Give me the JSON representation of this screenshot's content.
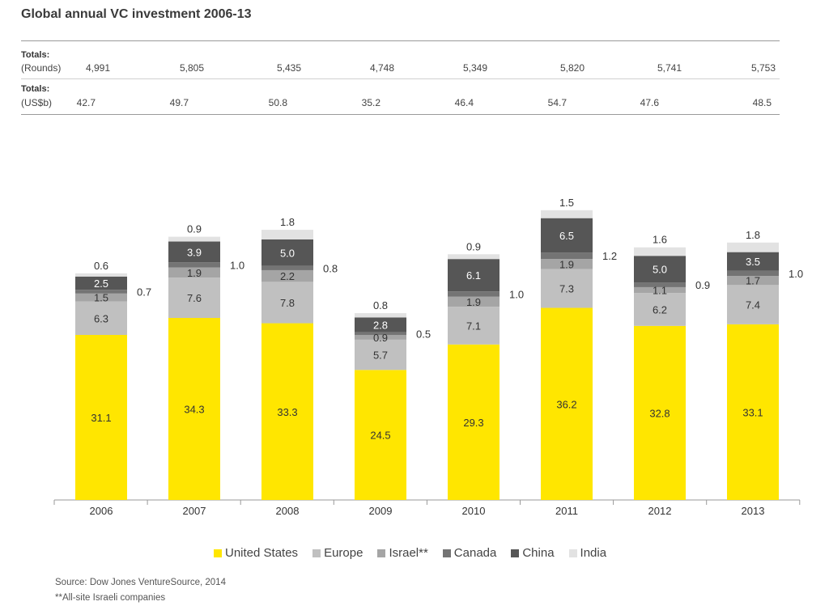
{
  "title": "Global annual VC investment 2006-13",
  "totals": {
    "rounds_label": "Totals:",
    "rounds_unit": "(Rounds)",
    "rounds": [
      "4,991",
      "5,805",
      "5,435",
      "4,748",
      "5,349",
      "5,820",
      "5,741",
      "5,753"
    ],
    "usd_label": "Totals:",
    "usd_unit": "(US$b)",
    "usd": [
      "42.7",
      "49.7",
      "50.8",
      "35.2",
      "46.4",
      "54.7",
      "47.6",
      "48.5"
    ]
  },
  "chart_data": {
    "type": "bar",
    "stacked": true,
    "categories": [
      "2006",
      "2007",
      "2008",
      "2009",
      "2010",
      "2011",
      "2012",
      "2013"
    ],
    "series": [
      {
        "name": "United States",
        "color": "#ffe600",
        "values": [
          31.1,
          34.3,
          33.3,
          24.5,
          29.3,
          36.2,
          32.8,
          33.1
        ]
      },
      {
        "name": "Europe",
        "color": "#c0c0c0",
        "values": [
          6.3,
          7.6,
          7.8,
          5.7,
          7.1,
          7.3,
          6.2,
          7.4
        ]
      },
      {
        "name": "Israel**",
        "color": "#a5a5a5",
        "values": [
          1.5,
          1.9,
          2.2,
          0.9,
          1.9,
          1.9,
          1.1,
          1.7
        ]
      },
      {
        "name": "Canada",
        "color": "#747474",
        "values": [
          0.7,
          1.0,
          0.8,
          0.5,
          1.0,
          1.2,
          0.9,
          1.0
        ]
      },
      {
        "name": "China",
        "color": "#565656",
        "values": [
          2.5,
          3.9,
          5.0,
          2.8,
          6.1,
          6.5,
          5.0,
          3.5
        ]
      },
      {
        "name": "India",
        "color": "#e2e2e2",
        "values": [
          0.6,
          0.9,
          1.8,
          0.8,
          0.9,
          1.5,
          1.6,
          1.8
        ]
      }
    ],
    "legend_position": "bottom",
    "grid": false
  },
  "source": "Source: Dow Jones VentureSource, 2014",
  "footnote": "**All-site Israeli companies"
}
